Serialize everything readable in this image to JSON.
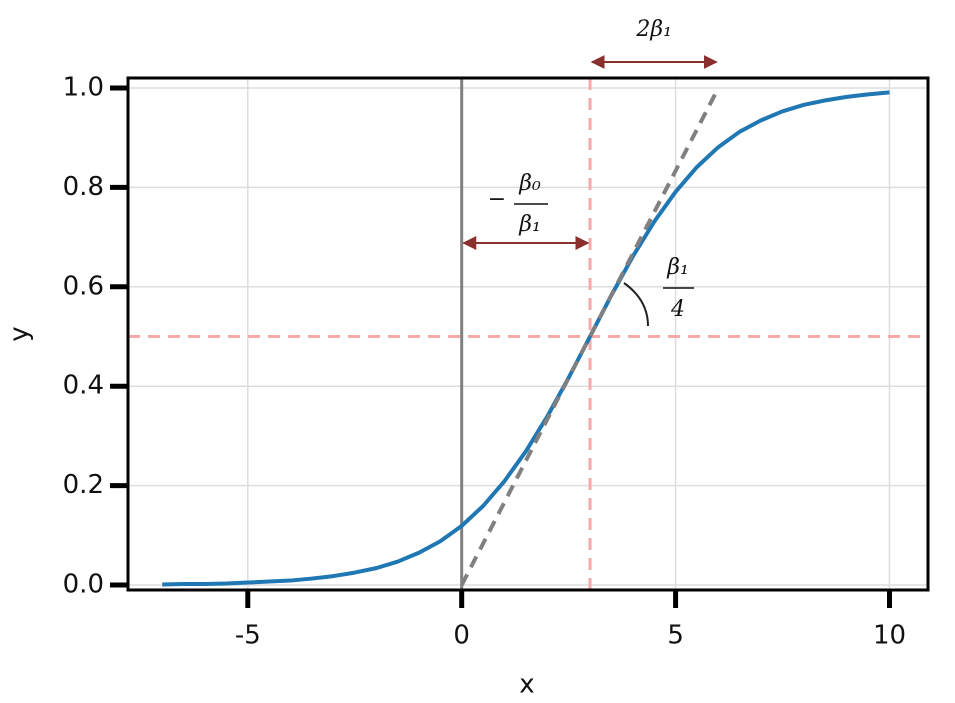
{
  "chart_data": {
    "type": "line",
    "x_label": "x",
    "y_label": "y",
    "x": [
      -7,
      -6.5,
      -6,
      -5.5,
      -5,
      -4.5,
      -4,
      -3.5,
      -3,
      -2.5,
      -2,
      -1.5,
      -1,
      -0.5,
      0,
      0.5,
      1,
      1.5,
      2,
      2.5,
      3,
      3.5,
      4,
      4.5,
      5,
      5.5,
      6,
      6.5,
      7,
      7.5,
      8,
      8.5,
      9,
      9.5,
      10
    ],
    "values": [
      0.001,
      0.002,
      0.002,
      0.003,
      0.005,
      0.007,
      0.009,
      0.013,
      0.018,
      0.025,
      0.034,
      0.047,
      0.065,
      0.088,
      0.119,
      0.159,
      0.209,
      0.269,
      0.339,
      0.417,
      0.5,
      0.583,
      0.661,
      0.731,
      0.791,
      0.841,
      0.881,
      0.912,
      0.935,
      0.953,
      0.966,
      0.975,
      0.982,
      0.987,
      0.991
    ],
    "color": "#1f77b4",
    "xlim": [
      -7.8,
      10.9
    ],
    "ylim": [
      -0.01,
      1.02
    ],
    "xticks": [
      -5,
      0,
      5,
      10
    ],
    "yticks": [
      {
        "value": 0,
        "label": "0.0"
      },
      0.2,
      0.4,
      0.6,
      0.8,
      {
        "value": 1,
        "label": "1.0"
      }
    ],
    "grid": true,
    "vlines": [
      {
        "x": 0,
        "color": "#808080",
        "style": "solid"
      },
      {
        "x": 3,
        "color": "#f7a8a8",
        "style": "dashed"
      }
    ],
    "hlines": [
      {
        "y": 0.5,
        "color": "#f7a8a8",
        "style": "dashed"
      }
    ],
    "tangent": {
      "x": [
        0,
        6
      ],
      "y": [
        0,
        1
      ],
      "color": "#808080",
      "style": "dashed"
    },
    "annotations": [
      {
        "text": "2β₁",
        "x_span": [
          3,
          6
        ]
      },
      {
        "prefix": "−",
        "numerator": "β₀",
        "denominator": "β₁",
        "x_span": [
          0,
          3
        ]
      },
      {
        "numerator": "β₁",
        "denominator": "4"
      }
    ]
  }
}
